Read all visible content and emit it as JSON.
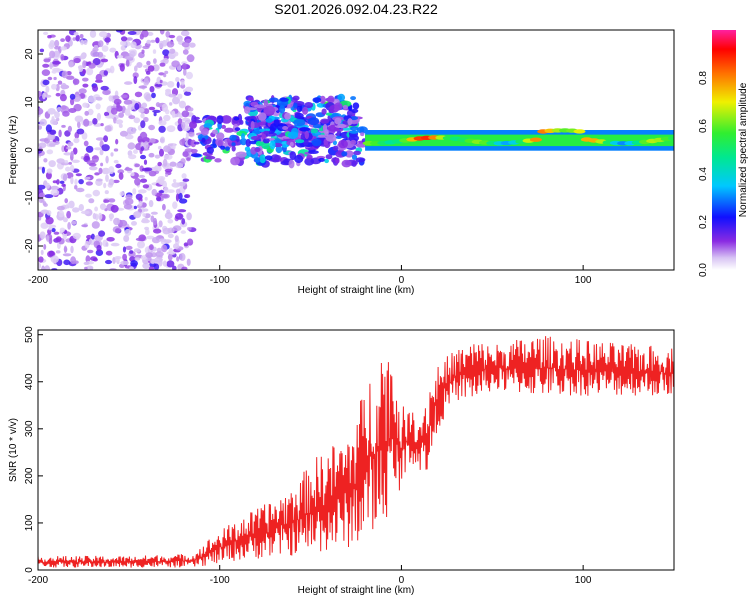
{
  "chart_data": [
    {
      "type": "heatmap",
      "title": "S201.2026.092.04.23.R22",
      "xlabel": "Height of straight line (km)",
      "ylabel": "Frequency (Hz)",
      "xlim": [
        -200,
        150
      ],
      "ylim": [
        -25,
        25
      ],
      "x_ticks": [
        -200,
        -100,
        0,
        100
      ],
      "x_tick_labels": [
        "-200",
        "-100",
        "0",
        "100"
      ],
      "y_ticks": [
        -20,
        -10,
        0,
        10,
        20
      ],
      "y_tick_labels": [
        "-20",
        "-10",
        "0",
        "10",
        "20"
      ],
      "colorbar": {
        "label": "Normalized spectral amplitude",
        "range": [
          0,
          1
        ],
        "ticks": [
          0.0,
          0.2,
          0.4,
          0.6,
          0.8
        ],
        "tick_labels": [
          "0.0",
          "0.2",
          "0.4",
          "0.6",
          "0.8"
        ]
      },
      "regions": [
        {
          "x_range": [
            -200,
            -115
          ],
          "description": "scattered noise",
          "freq_range": [
            -25,
            25
          ],
          "amplitude": 0.08
        },
        {
          "x_range": [
            -115,
            -20
          ],
          "description": "noisy band",
          "freq_center": 2,
          "amplitude": 0.2
        },
        {
          "x_range": [
            -85,
            -25
          ],
          "description": "secondary band",
          "freq_center": 6,
          "amplitude": 0.15
        },
        {
          "x_range": [
            -20,
            150
          ],
          "description": "strong stable line",
          "freq_center": 2,
          "amplitude": 0.85
        }
      ]
    },
    {
      "type": "line",
      "xlabel": "Height of straight line (km)",
      "ylabel": "SNR (10 * v/v)",
      "xlim": [
        -200,
        150
      ],
      "ylim": [
        0,
        510
      ],
      "x_ticks": [
        -200,
        -100,
        0,
        100
      ],
      "x_tick_labels": [
        "-200",
        "-100",
        "0",
        "100"
      ],
      "y_ticks": [
        0,
        100,
        200,
        300,
        400,
        500
      ],
      "y_tick_labels": [
        "0",
        "100",
        "200",
        "300",
        "400",
        "500"
      ],
      "color": "#ee2222",
      "series": [
        {
          "name": "SNR envelope",
          "x": [
            -200,
            -150,
            -115,
            -105,
            -90,
            -75,
            -60,
            -45,
            -30,
            -20,
            -12,
            -5,
            0,
            5,
            10,
            15,
            20,
            30,
            40,
            50,
            75,
            100,
            125,
            150
          ],
          "low": [
            5,
            5,
            5,
            10,
            20,
            25,
            30,
            35,
            45,
            60,
            80,
            130,
            180,
            230,
            210,
            200,
            300,
            360,
            360,
            380,
            370,
            370,
            370,
            370
          ],
          "high": [
            30,
            30,
            35,
            70,
            110,
            140,
            180,
            250,
            290,
            390,
            490,
            470,
            350,
            340,
            330,
            400,
            440,
            470,
            490,
            480,
            500,
            490,
            480,
            475
          ]
        }
      ]
    }
  ]
}
